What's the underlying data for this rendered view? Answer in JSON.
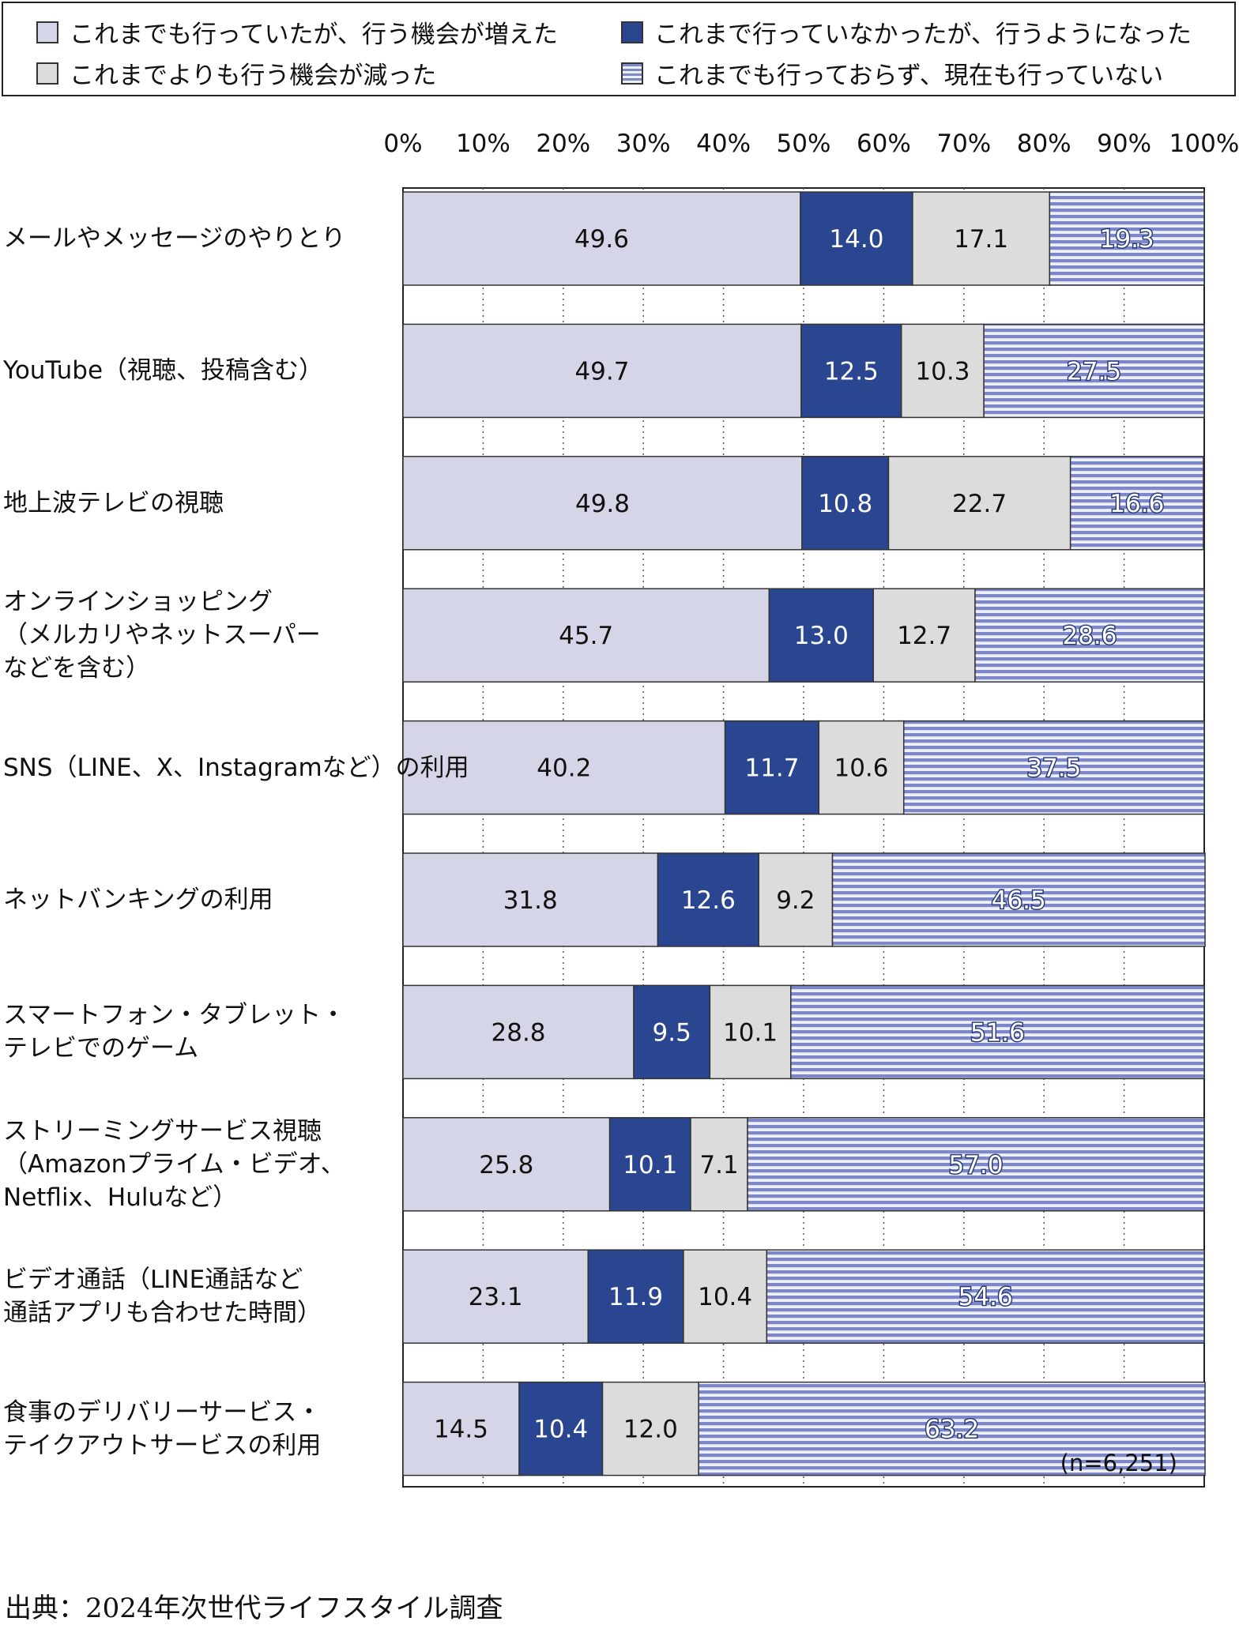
{
  "legend": [
    {
      "label": "これまでも行っていたが、行う機会が増えた",
      "color": "#d4d6e8",
      "pattern": "solid"
    },
    {
      "label": "これまで行っていなかったが、行うようになった",
      "color": "#2b4690",
      "pattern": "solid"
    },
    {
      "label": "これまでよりも行う機会が減った",
      "color": "#dcdcdc",
      "pattern": "solid"
    },
    {
      "label": "これまでも行っておらず、現在も行っていない",
      "color": "#7e88c8",
      "pattern": "horizontal-stripes"
    }
  ],
  "note": "(n=6,251)",
  "source": "出典：2024年次世代ライフスタイル調査",
  "chart_data": {
    "type": "bar",
    "orientation": "horizontal",
    "stacked": true,
    "xlim": [
      0,
      100
    ],
    "x_ticks": [
      "0%",
      "10%",
      "20%",
      "30%",
      "40%",
      "50%",
      "60%",
      "70%",
      "80%",
      "90%",
      "100%"
    ],
    "grid": "vertical dotted",
    "legend_position": "top",
    "categories": [
      [
        "メールやメッセージのやりとり"
      ],
      [
        "YouTube（視聴、投稿含む）"
      ],
      [
        "地上波テレビの視聴"
      ],
      [
        "オンラインショッピング",
        "（メルカリやネットスーパー",
        "などを含む）"
      ],
      [
        "SNS（LINE、X、Instagramなど）の利用"
      ],
      [
        "ネットバンキングの利用"
      ],
      [
        "スマートフォン・タブレット・",
        "テレビでのゲーム"
      ],
      [
        "ストリーミングサービス視聴",
        "（Amazonプライム・ビデオ、",
        "Netflix、Huluなど）"
      ],
      [
        "ビデオ通話（LINE通話など",
        "通話アプリも合わせた時間）"
      ],
      [
        "食事のデリバリーサービス・",
        "テイクアウトサービスの利用"
      ]
    ],
    "series": [
      {
        "name": "これまでも行っていたが、行う機会が増えた",
        "values": [
          49.6,
          49.7,
          49.8,
          45.7,
          40.2,
          31.8,
          28.8,
          25.8,
          23.1,
          14.5
        ]
      },
      {
        "name": "これまで行っていなかったが、行うようになった",
        "values": [
          14.0,
          12.5,
          10.8,
          13.0,
          11.7,
          12.6,
          9.5,
          10.1,
          11.9,
          10.4
        ]
      },
      {
        "name": "これまでよりも行う機会が減った",
        "values": [
          17.1,
          10.3,
          22.7,
          12.7,
          10.6,
          9.2,
          10.1,
          7.1,
          10.4,
          12.0
        ]
      },
      {
        "name": "これまでも行っておらず、現在も行っていない",
        "values": [
          19.3,
          27.5,
          16.6,
          28.6,
          37.5,
          46.5,
          51.6,
          57.0,
          54.6,
          63.2
        ]
      }
    ]
  }
}
